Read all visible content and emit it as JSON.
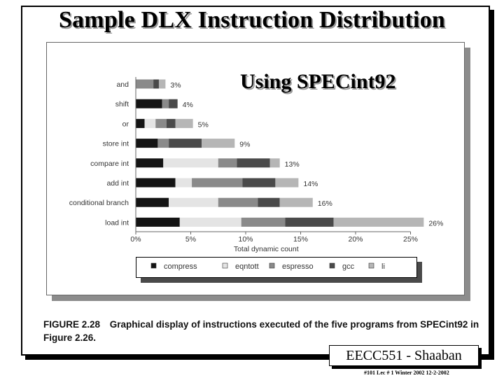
{
  "slide": {
    "title": "Sample DLX Instruction Distribution",
    "overlay": "Using SPECint92",
    "caption_figure": "FIGURE 2.28",
    "caption_text": "Graphical display of instructions executed of the five programs from SPECint92 in Figure 2.26.",
    "course": "EECC551 - Shaaban",
    "footer": "#101   Lec # 1  Winter 2002   12-2-2002"
  },
  "colors": {
    "compress": "#141414",
    "eqntott": "#e4e4e4",
    "espresso": "#8a8a8a",
    "gcc": "#4a4a4a",
    "li": "#b6b6b6"
  },
  "chart_data": {
    "type": "bar",
    "orientation": "horizontal",
    "stacked": true,
    "categories": [
      "and",
      "shift",
      "or",
      "store int",
      "compare int",
      "add int",
      "conditional branch",
      "load int"
    ],
    "series": [
      {
        "name": "compress",
        "values": [
          0.0,
          2.4,
          0.8,
          2.0,
          2.5,
          3.6,
          3.0,
          4.0
        ]
      },
      {
        "name": "eqntott",
        "values": [
          0.0,
          0.0,
          1.0,
          0.0,
          5.0,
          1.5,
          4.5,
          5.6
        ]
      },
      {
        "name": "espresso",
        "values": [
          1.6,
          0.6,
          1.0,
          1.0,
          1.7,
          4.6,
          3.6,
          4.0
        ]
      },
      {
        "name": "gcc",
        "values": [
          0.5,
          0.8,
          0.8,
          3.0,
          3.0,
          3.0,
          2.0,
          4.4
        ]
      },
      {
        "name": "li",
        "values": [
          0.6,
          0.0,
          1.6,
          3.0,
          0.9,
          2.1,
          3.0,
          8.2
        ]
      }
    ],
    "totals_labels": [
      "3%",
      "4%",
      "5%",
      "9%",
      "13%",
      "14%",
      "16%",
      "26%"
    ],
    "xlabel": "Total dynamic count",
    "xticks": [
      "0%",
      "5%",
      "10%",
      "15%",
      "20%",
      "25%"
    ],
    "xlim": [
      0,
      25
    ],
    "grid": false,
    "legend_position": "bottom"
  }
}
